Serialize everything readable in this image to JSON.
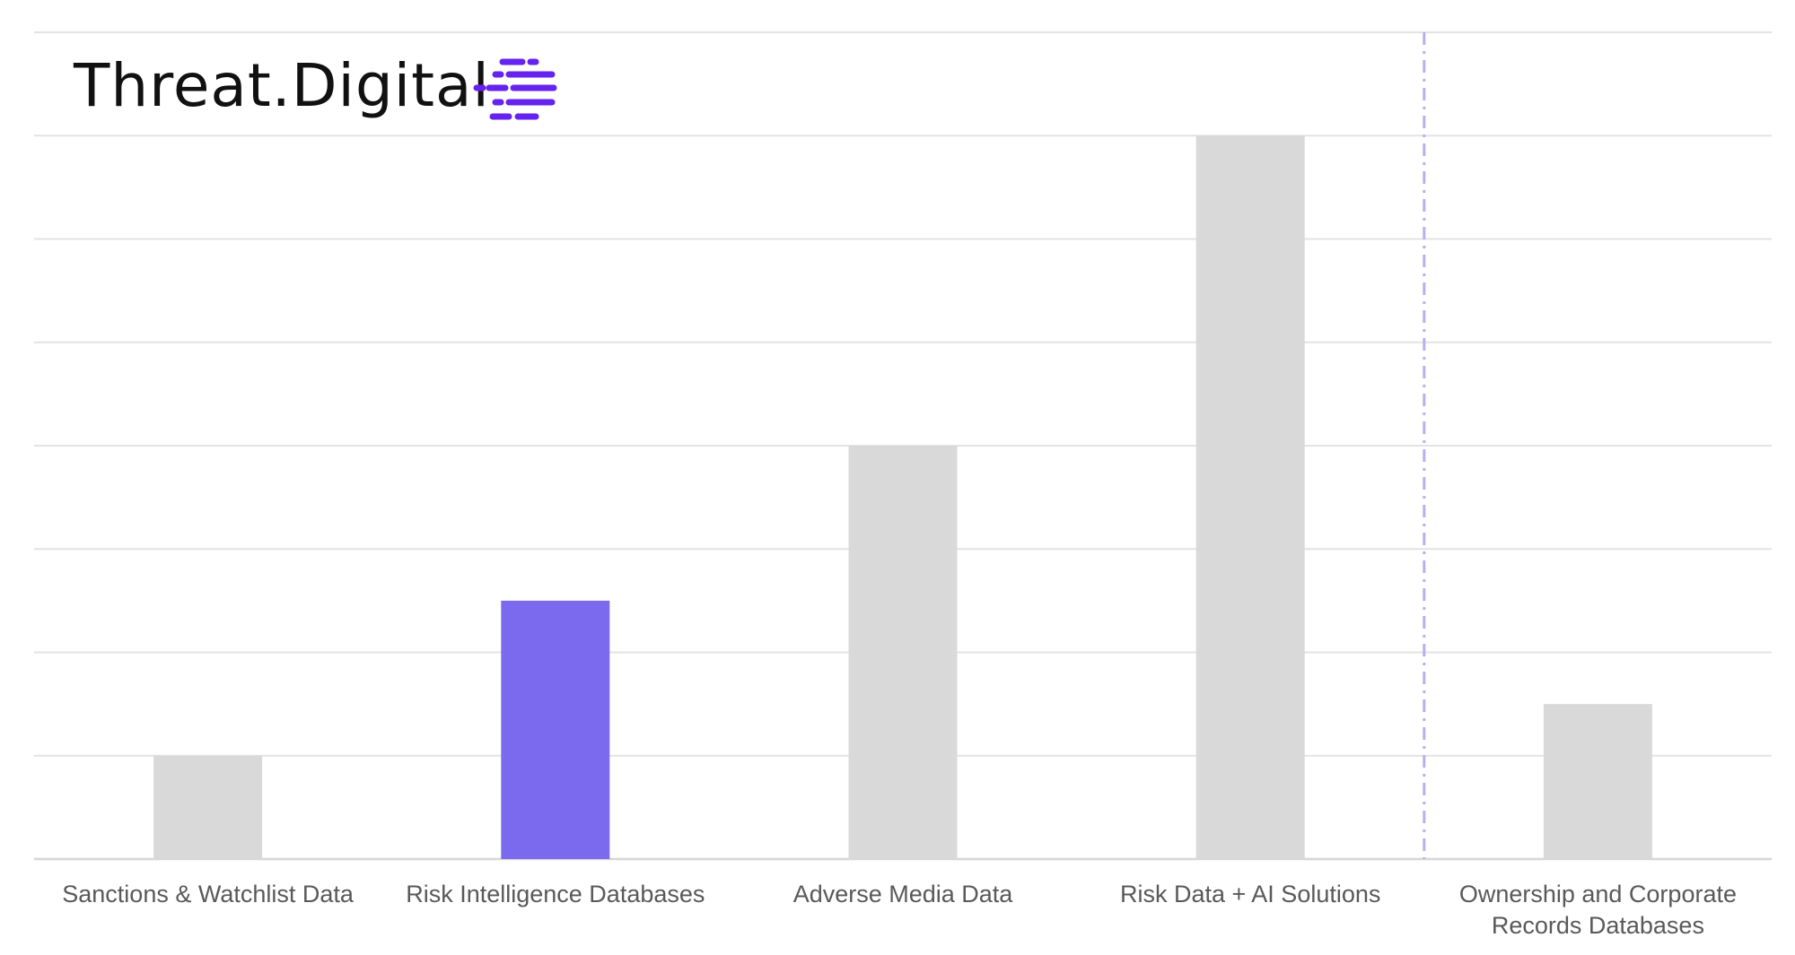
{
  "brand": {
    "name": "Threat.Digital",
    "icon": "stacked-dash-lines-icon",
    "accent": "#6622EE"
  },
  "chart_data": {
    "type": "bar",
    "categories": [
      [
        "Sanctions & Watchlist Data"
      ],
      [
        "Risk Intelligence Databases"
      ],
      [
        "Adverse Media Data"
      ],
      [
        "Risk Data + AI Solutions"
      ],
      [
        "Ownership and Corporate",
        "Records Databases"
      ]
    ],
    "values": [
      1,
      2.5,
      4,
      7,
      1.5
    ],
    "ylim": [
      0,
      8
    ],
    "grid": true,
    "colors": {
      "bar": "#D9D9D9",
      "highlight": "#7B6AEE",
      "gridline": "#E3E3E3",
      "separator": "#B9AEEF"
    },
    "highlight_index": 1,
    "separator_after_index": 3
  }
}
